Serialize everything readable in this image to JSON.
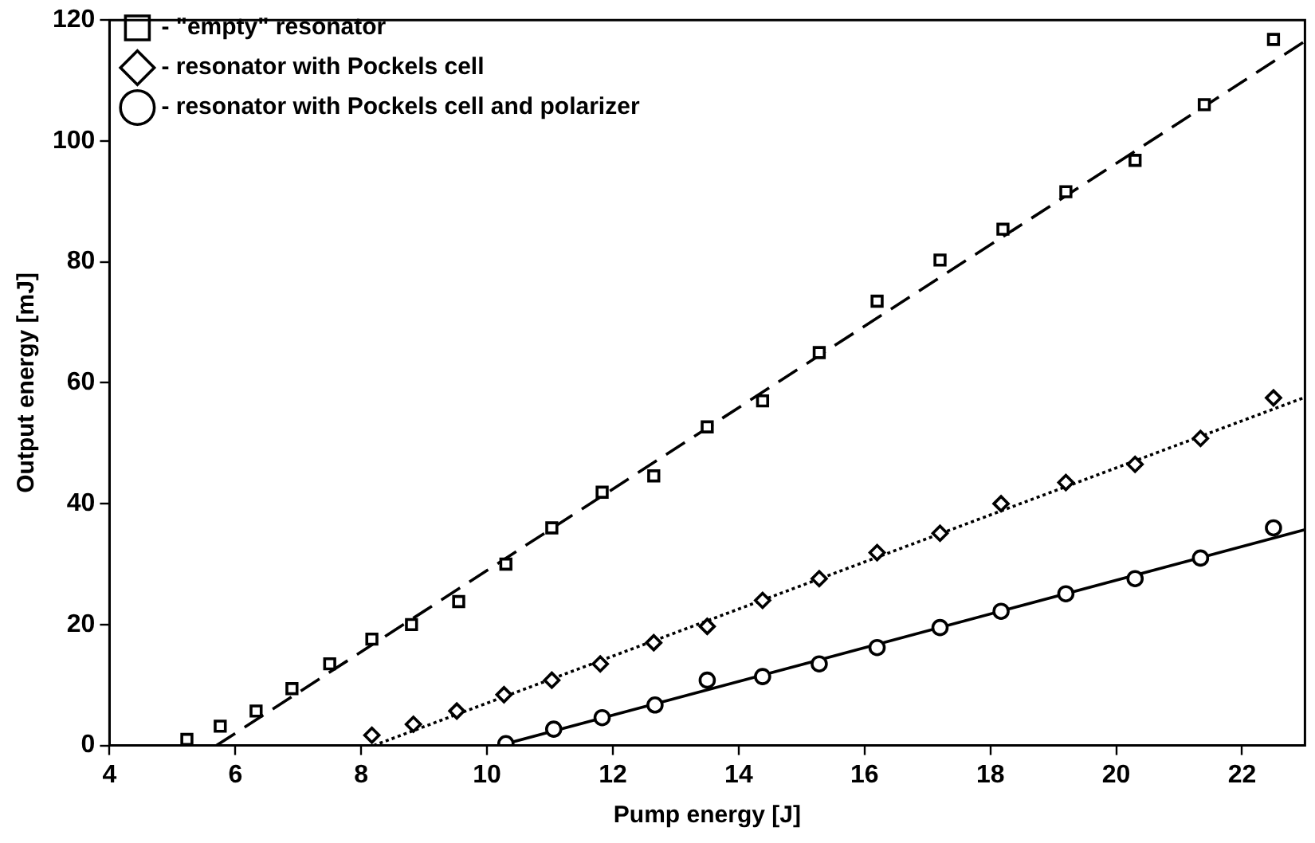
{
  "chart_data": {
    "type": "scatter",
    "xlabel": "Pump energy [J]",
    "ylabel": "Output energy [mJ]",
    "xlim": [
      4,
      23
    ],
    "ylim": [
      0,
      120
    ],
    "xticks": [
      4,
      6,
      8,
      10,
      12,
      14,
      16,
      18,
      20,
      22
    ],
    "yticks": [
      0,
      20,
      40,
      60,
      80,
      100,
      120
    ],
    "grid": false,
    "legend": "top left",
    "series": [
      {
        "name": "- \"empty\" resonator",
        "marker": "square",
        "color": "#000000",
        "x": [
          5.23,
          5.76,
          6.33,
          6.9,
          7.5,
          8.17,
          8.8,
          9.55,
          10.3,
          11.03,
          11.83,
          12.65,
          13.5,
          14.38,
          15.28,
          16.2,
          17.2,
          18.2,
          19.2,
          20.3,
          21.4,
          22.5
        ],
        "values": [
          1,
          3.2,
          5.7,
          9.4,
          13.5,
          17.6,
          20,
          23.8,
          30,
          36,
          41.9,
          44.6,
          52.7,
          57,
          65,
          73.5,
          80.3,
          85.4,
          91.6,
          96.8,
          106,
          116.8
        ]
      },
      {
        "name": "- resonator with Pockels cell",
        "marker": "diamond",
        "color": "#000000",
        "x": [
          8.17,
          8.83,
          9.52,
          10.27,
          11.03,
          11.8,
          12.65,
          13.5,
          14.38,
          15.28,
          16.2,
          17.2,
          18.17,
          19.2,
          20.3,
          21.34,
          22.5
        ],
        "values": [
          1.7,
          3.5,
          5.7,
          8.4,
          10.8,
          13.5,
          17,
          19.7,
          24,
          27.6,
          31.9,
          35.1,
          40,
          43.5,
          46.5,
          50.8,
          57.5
        ]
      },
      {
        "name": "- resonator with Pockels cell and polarizer",
        "marker": "circle",
        "color": "#000000",
        "x": [
          10.3,
          11.06,
          11.83,
          12.67,
          13.5,
          14.38,
          15.28,
          16.2,
          17.2,
          18.17,
          19.2,
          20.3,
          21.34,
          22.5
        ],
        "values": [
          0.3,
          2.7,
          4.6,
          6.7,
          10.8,
          11.4,
          13.5,
          16.2,
          19.5,
          22.2,
          25.1,
          27.6,
          31,
          36
        ]
      },
      {
        "type": "line",
        "line_style": "dashed",
        "color": "#000000",
        "x": [
          5.7,
          23
        ],
        "values": [
          0,
          116.5
        ]
      },
      {
        "type": "line",
        "line_style": "dotted",
        "color": "#000000",
        "x": [
          8.2,
          23
        ],
        "values": [
          0,
          57.6
        ]
      },
      {
        "type": "line",
        "line_style": "solid",
        "color": "#000000",
        "x": [
          10.2,
          23
        ],
        "values": [
          0,
          35.7
        ]
      }
    ]
  }
}
